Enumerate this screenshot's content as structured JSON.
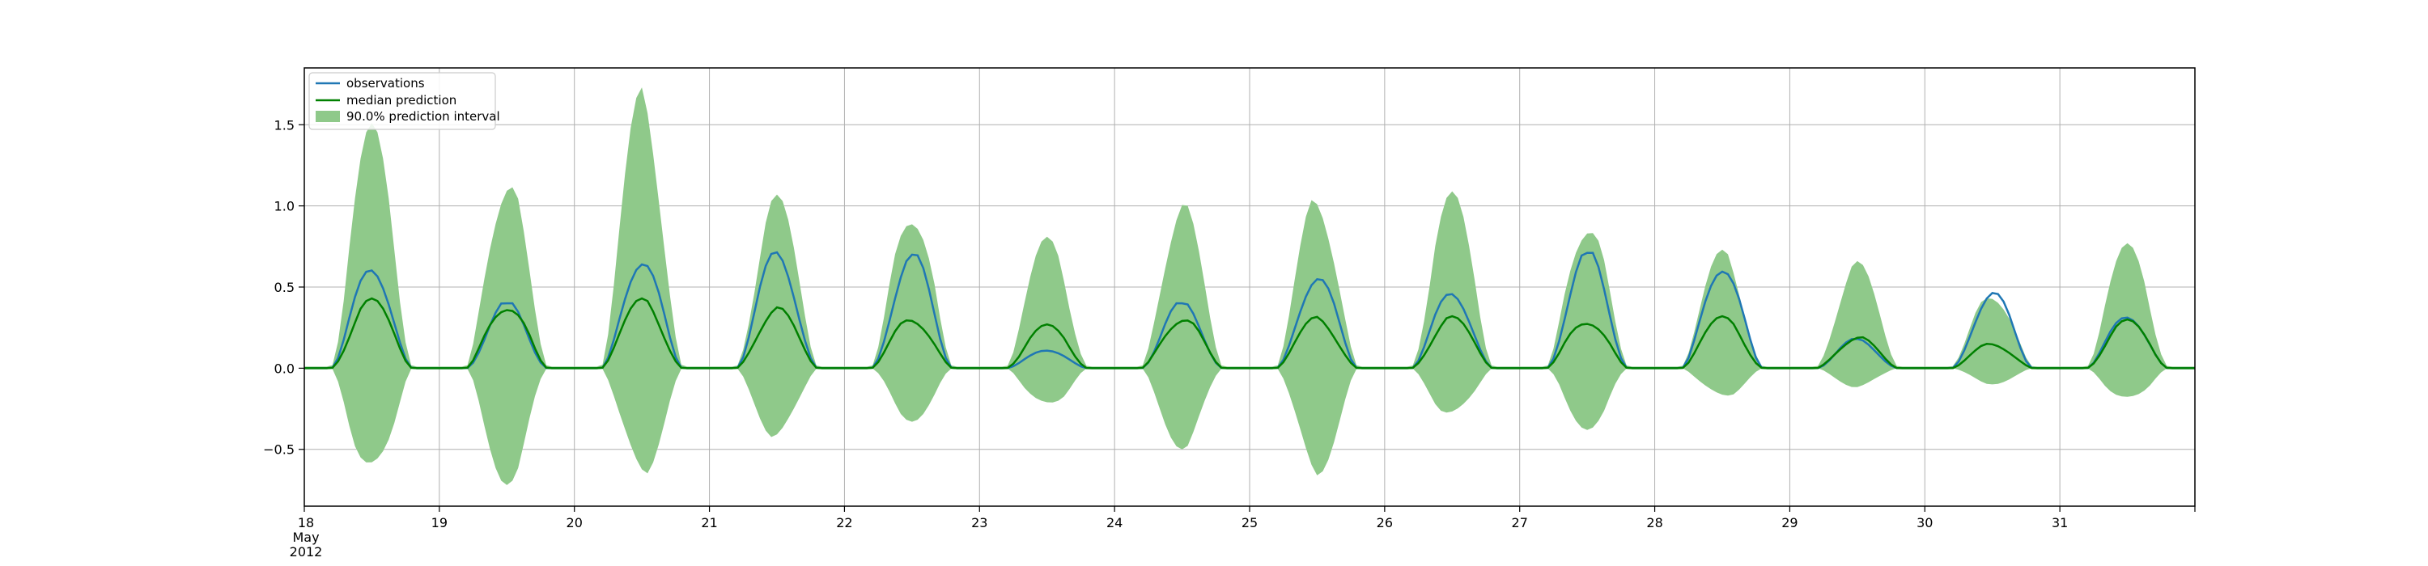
{
  "chart_data": {
    "type": "line",
    "title": "",
    "xlabel": "",
    "ylabel": "",
    "x_axis": {
      "start_date": "2012-05-18",
      "end_date": "2012-06-01",
      "tick_labels": [
        "18",
        "19",
        "20",
        "21",
        "22",
        "23",
        "24",
        "25",
        "26",
        "27",
        "28",
        "29",
        "30",
        "31"
      ],
      "first_tick_sublabels": [
        "May",
        "2012"
      ]
    },
    "y_axis": {
      "ylim": [
        -0.85,
        1.85
      ],
      "ticks": [
        -0.5,
        0.0,
        0.5,
        1.0,
        1.5
      ],
      "tick_labels": [
        "−0.5",
        "0.0",
        "0.5",
        "1.0",
        "1.5"
      ]
    },
    "grid": true,
    "legend": {
      "position": "top-left",
      "entries": [
        "observations",
        "median prediction",
        "90.0% prediction interval"
      ]
    },
    "colors": {
      "observations": "#1f77b4",
      "median": "#008000",
      "interval": "#8fc98a"
    },
    "days": [
      {
        "date": "2012-05-18",
        "obs_peak": 0.65,
        "median_peak": 0.43,
        "upper_peak": 1.5,
        "lower_trough": -0.72
      },
      {
        "date": "2012-05-19",
        "obs_peak": 0.4,
        "median_peak": 0.42,
        "upper_peak": 1.21,
        "lower_trough": -0.72
      },
      {
        "date": "2012-05-20",
        "obs_peak": 0.7,
        "median_peak": 0.43,
        "upper_peak": 1.72,
        "lower_trough": -0.68
      },
      {
        "date": "2012-05-21",
        "obs_peak": 0.72,
        "median_peak": 0.38,
        "upper_peak": 1.06,
        "lower_trough": -0.45
      },
      {
        "date": "2012-05-22",
        "obs_peak": 0.7,
        "median_peak": 0.33,
        "upper_peak": 1.03,
        "lower_trough": -0.33
      },
      {
        "date": "2012-05-23",
        "obs_peak": 0.12,
        "median_peak": 0.27,
        "upper_peak": 0.8,
        "lower_trough": -0.26
      },
      {
        "date": "2012-05-24",
        "obs_peak": 0.4,
        "median_peak": 0.33,
        "upper_peak": 1.03,
        "lower_trough": -0.5
      },
      {
        "date": "2012-05-25",
        "obs_peak": 0.58,
        "median_peak": 0.32,
        "upper_peak": 1.08,
        "lower_trough": -0.66
      },
      {
        "date": "2012-05-26",
        "obs_peak": 0.48,
        "median_peak": 0.32,
        "upper_peak": 1.08,
        "lower_trough": -0.32
      },
      {
        "date": "2012-05-27",
        "obs_peak": 0.71,
        "median_peak": 0.32,
        "upper_peak": 0.95,
        "lower_trough": -0.38
      },
      {
        "date": "2012-05-28",
        "obs_peak": 0.66,
        "median_peak": 0.32,
        "upper_peak": 0.72,
        "lower_trough": -0.19
      },
      {
        "date": "2012-05-29",
        "obs_peak": 0.18,
        "median_peak": 0.2,
        "upper_peak": 0.65,
        "lower_trough": -0.12
      },
      {
        "date": "2012-05-30",
        "obs_peak": 0.47,
        "median_peak": 0.16,
        "upper_peak": 0.48,
        "lower_trough": -0.1
      },
      {
        "date": "2012-05-31",
        "obs_peak": 0.34,
        "median_peak": 0.3,
        "upper_peak": 0.76,
        "lower_trough": -0.22
      }
    ]
  }
}
